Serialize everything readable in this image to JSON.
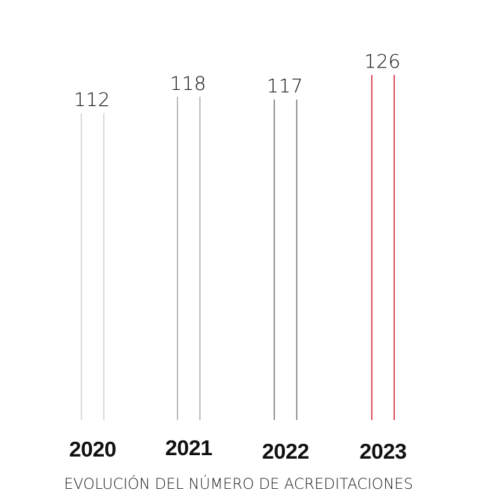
{
  "chart_data": {
    "type": "bar",
    "categories": [
      "2020",
      "2021",
      "2022",
      "2023"
    ],
    "values": [
      112,
      118,
      117,
      126
    ],
    "data_labels": [
      "112",
      "118",
      "117",
      "126"
    ],
    "colors": [
      "#c8c8c8",
      "#9a9a9a",
      "#5e5e5e",
      "#d7263d"
    ],
    "title": "",
    "caption": "EVOLUCIÓN DEL NÚMERO DE ACREDITACIONES",
    "xlabel": "",
    "ylabel": "",
    "ylim": [
      0,
      126
    ],
    "grid": false,
    "legend": "none"
  }
}
